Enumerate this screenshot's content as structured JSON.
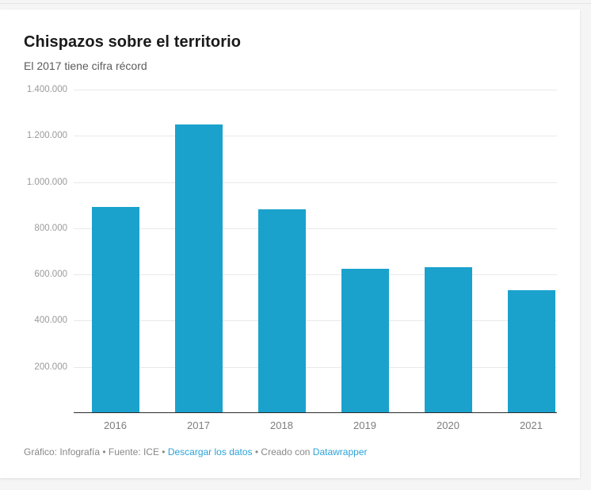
{
  "chart_data": {
    "type": "bar",
    "title": "Chispazos sobre el territorio",
    "subtitle": "El 2017 tiene cifra récord",
    "categories": [
      "2016",
      "2017",
      "2018",
      "2019",
      "2020",
      "2021"
    ],
    "values": [
      890000,
      1245000,
      877000,
      620000,
      627000,
      530000
    ],
    "xlabel": "",
    "ylabel": "",
    "ylim": [
      0,
      1400000
    ],
    "ytick_step": 200000,
    "ytick_labels": [
      "200.000",
      "400.000",
      "600.000",
      "800.000",
      "1.000.000",
      "1.200.000",
      "1.400.000"
    ],
    "grid": true,
    "legend_position": "none",
    "bar_color": "#1aa2cd"
  },
  "footer": {
    "text1": "Gráfico: Infografía • Fuente: ICE • ",
    "link_download": "Descargar los datos",
    "text2": " • Creado con ",
    "link_brand": "Datawrapper"
  },
  "colors": {
    "background": "#f5f5f6",
    "card": "#ffffff",
    "title": "#1a1a1a",
    "subtitle": "#5b5b5b",
    "ytick": "#9a9a9a",
    "xtick": "#7d7d7d",
    "gridline": "#e9e9e9",
    "axis_line": "#2b2b2b",
    "footer_text": "#888888",
    "link": "#2ba3d8"
  }
}
